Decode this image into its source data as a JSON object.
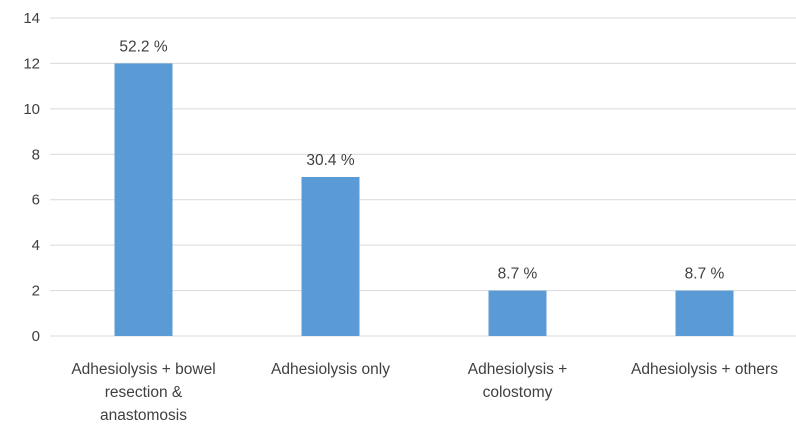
{
  "chart_data": {
    "type": "bar",
    "categories": [
      [
        "Adhesiolysis + bowel",
        "resection &",
        "anastomosis"
      ],
      [
        "Adhesiolysis only"
      ],
      [
        "Adhesiolysis +",
        "colostomy"
      ],
      [
        "Adhesiolysis + others"
      ]
    ],
    "values": [
      12,
      7,
      2,
      2
    ],
    "data_labels": [
      "52.2 %",
      "30.4 %",
      "8.7 %",
      "8.7 %"
    ],
    "yticks": [
      "0",
      "2",
      "4",
      "6",
      "8",
      "10",
      "12",
      "14"
    ],
    "ylim": [
      0,
      14
    ],
    "grid": true,
    "legend": "none",
    "title": "",
    "xlabel": "",
    "ylabel": "",
    "colors": {
      "bar": "#5b9bd5",
      "grid": "#d9d9d9",
      "text": "#404040"
    }
  }
}
